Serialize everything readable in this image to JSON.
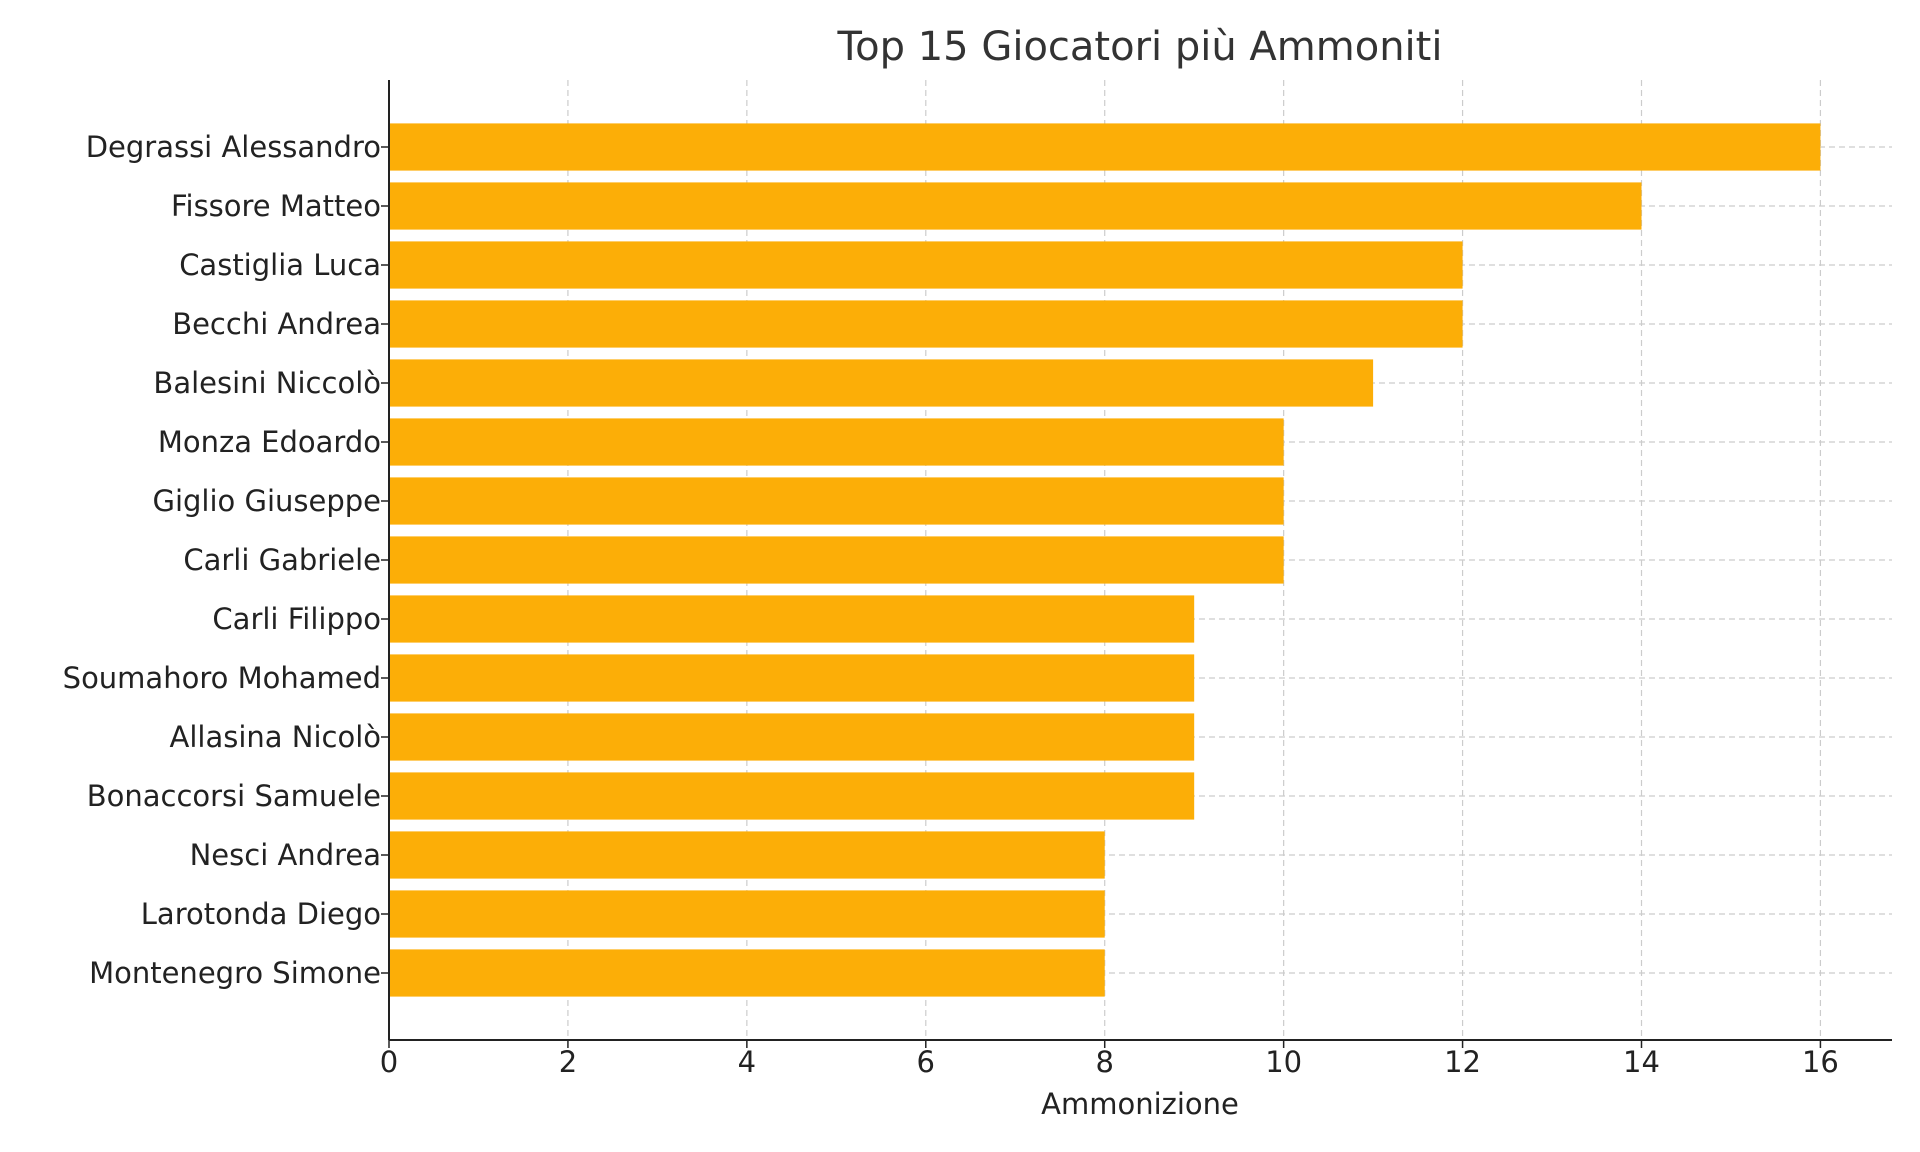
{
  "chart_data": {
    "type": "barh",
    "title": "Top 15 Giocatori più Ammoniti",
    "xlabel": "Ammonizione",
    "categories": [
      "Degrassi Alessandro",
      "Fissore Matteo",
      "Castiglia Luca",
      "Becchi Andrea",
      "Balesini Niccolò",
      "Monza Edoardo",
      "Giglio Giuseppe",
      "Carli Gabriele",
      "Carli Filippo",
      "Soumahoro Mohamed",
      "Allasina Nicolò",
      "Bonaccorsi Samuele",
      "Nesci Andrea",
      "Larotonda Diego",
      "Montenegro Simone"
    ],
    "values": [
      16,
      14,
      12,
      12,
      11,
      10,
      10,
      10,
      9,
      9,
      9,
      9,
      8,
      8,
      8
    ],
    "color": "#fcae07",
    "xlim": [
      0,
      16.8
    ],
    "xticks": [
      0,
      2,
      4,
      6,
      8,
      10,
      12,
      14,
      16
    ],
    "grid": true
  }
}
